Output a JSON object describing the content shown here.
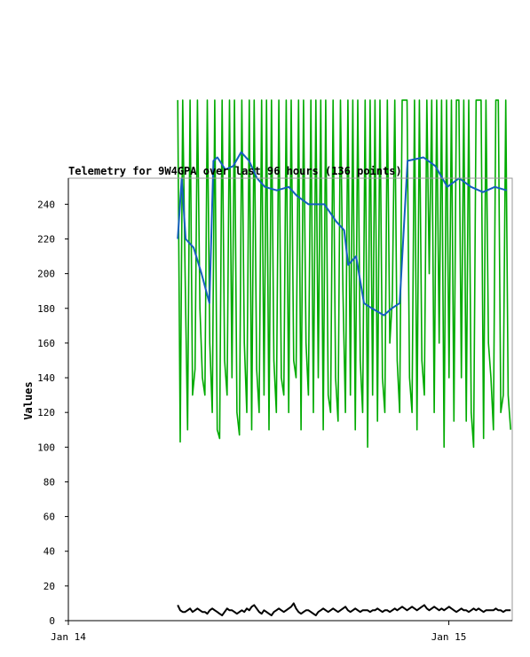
{
  "chart_data": {
    "type": "line",
    "title": "Telemetry for 9W4GPA over last 96 hours (136 points)",
    "xlabel": "",
    "ylabel": "Values",
    "ylim": [
      0,
      255
    ],
    "yticks": [
      0,
      20,
      40,
      60,
      80,
      100,
      120,
      140,
      160,
      180,
      200,
      220,
      240
    ],
    "xlim": [
      "2024-01-14 00:00",
      "2024-01-15 04:00"
    ],
    "xticks": [
      {
        "label": "Jan 14",
        "x": "2024-01-14 00:00"
      },
      {
        "label": "Jan 15",
        "x": "2024-01-15 00:00"
      }
    ],
    "legend": "none",
    "grid": false,
    "colors": {
      "blue": "#1560bd",
      "green": "#00aa00",
      "black": "#000000",
      "frame": "#999999"
    },
    "series": [
      {
        "color": "#1560bd",
        "points": [
          [
            "2024-01-14 06:54",
            220
          ],
          [
            "2024-01-14 07:09",
            255
          ],
          [
            "2024-01-14 07:24",
            220
          ],
          [
            "2024-01-14 07:54",
            215
          ],
          [
            "2024-01-14 08:24",
            200
          ],
          [
            "2024-01-14 08:54",
            183
          ],
          [
            "2024-01-14 09:09",
            265
          ],
          [
            "2024-01-14 09:24",
            267
          ],
          [
            "2024-01-14 09:54",
            260
          ],
          [
            "2024-01-14 10:24",
            262
          ],
          [
            "2024-01-14 10:54",
            270
          ],
          [
            "2024-01-14 11:24",
            265
          ],
          [
            "2024-01-14 11:54",
            255
          ],
          [
            "2024-01-14 12:24",
            250
          ],
          [
            "2024-01-14 13:09",
            248
          ],
          [
            "2024-01-14 13:54",
            250
          ],
          [
            "2024-01-14 14:24",
            245
          ],
          [
            "2024-01-14 15:09",
            240
          ],
          [
            "2024-01-14 16:09",
            240
          ],
          [
            "2024-01-14 16:54",
            230
          ],
          [
            "2024-01-14 17:24",
            225
          ],
          [
            "2024-01-14 17:39",
            205
          ],
          [
            "2024-01-14 18:09",
            210
          ],
          [
            "2024-01-14 18:39",
            183
          ],
          [
            "2024-01-14 19:09",
            180
          ],
          [
            "2024-01-14 19:54",
            176
          ],
          [
            "2024-01-14 20:24",
            180
          ],
          [
            "2024-01-14 20:54",
            183
          ],
          [
            "2024-01-14 21:24",
            265
          ],
          [
            "2024-01-14 22:24",
            267
          ],
          [
            "2024-01-14 23:09",
            262
          ],
          [
            "2024-01-14 23:54",
            250
          ],
          [
            "2024-01-15 00:39",
            255
          ],
          [
            "2024-01-15 01:24",
            250
          ],
          [
            "2024-01-15 02:09",
            247
          ],
          [
            "2024-01-15 02:54",
            250
          ],
          [
            "2024-01-15 03:39",
            248
          ]
        ]
      }
    ],
    "black_series": {
      "color": "#000000",
      "start": "2024-01-14 06:54",
      "end": "2024-01-15 03:54",
      "values": [
        9,
        6,
        5,
        5,
        6,
        7,
        5,
        6,
        7,
        6,
        5,
        5,
        4,
        6,
        7,
        6,
        5,
        4,
        3,
        5,
        7,
        6,
        6,
        5,
        4,
        5,
        6,
        5,
        7,
        6,
        8,
        9,
        7,
        5,
        4,
        6,
        5,
        4,
        3,
        5,
        6,
        7,
        6,
        5,
        6,
        7,
        8,
        10,
        7,
        5,
        4,
        5,
        6,
        6,
        5,
        4,
        3,
        5,
        6,
        7,
        6,
        5,
        6,
        7,
        6,
        5,
        6,
        7,
        8,
        6,
        5,
        6,
        7,
        6,
        5,
        6,
        6,
        6,
        5,
        6,
        6,
        7,
        6,
        5,
        6,
        6,
        5,
        6,
        7,
        6,
        7,
        8,
        7,
        6,
        7,
        8,
        7,
        6,
        7,
        8,
        9,
        7,
        6,
        7,
        8,
        7,
        6,
        7,
        6,
        7,
        8,
        7,
        6,
        5,
        6,
        7,
        6,
        6,
        5,
        6,
        7,
        6,
        7,
        6,
        5,
        6,
        6,
        6,
        6,
        7,
        6,
        6,
        5,
        6,
        6,
        6
      ]
    },
    "green_series": {
      "color": "#00aa00",
      "start": "2024-01-14 06:54",
      "end": "2024-01-15 03:54",
      "values": [
        300,
        103,
        300,
        200,
        110,
        300,
        130,
        145,
        300,
        180,
        140,
        130,
        300,
        160,
        120,
        300,
        110,
        105,
        300,
        150,
        130,
        300,
        140,
        300,
        120,
        107,
        300,
        160,
        120,
        300,
        110,
        300,
        145,
        120,
        300,
        130,
        300,
        110,
        300,
        150,
        120,
        300,
        140,
        130,
        300,
        120,
        300,
        150,
        140,
        300,
        110,
        300,
        160,
        130,
        300,
        120,
        300,
        140,
        300,
        110,
        300,
        130,
        120,
        300,
        140,
        115,
        300,
        190,
        120,
        300,
        130,
        300,
        110,
        300,
        150,
        120,
        300,
        100,
        300,
        130,
        300,
        115,
        300,
        140,
        120,
        300,
        160,
        185,
        300,
        150,
        120,
        300,
        300,
        300,
        140,
        120,
        300,
        110,
        300,
        150,
        130,
        300,
        200,
        300,
        120,
        300,
        160,
        300,
        100,
        300,
        140,
        300,
        115,
        300,
        300,
        140,
        300,
        115,
        300,
        120,
        100,
        300,
        300,
        300,
        105,
        300,
        160,
        140,
        110,
        300,
        300,
        120,
        130,
        300,
        130,
        110
      ]
    }
  }
}
